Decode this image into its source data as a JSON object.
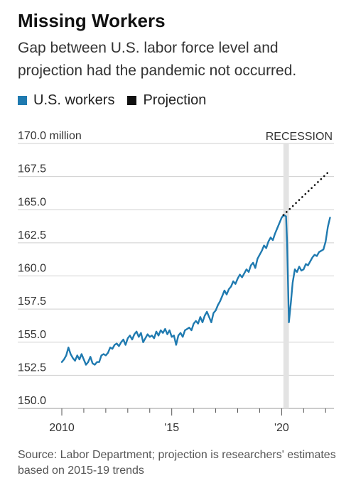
{
  "header": {
    "title": "Missing Workers",
    "subtitle": "Gap between U.S. labor force level and projection had the pandemic not occurred."
  },
  "legend": [
    {
      "label": "U.S. workers",
      "color": "#1f7ab0"
    },
    {
      "label": "Projection",
      "color": "#111111"
    }
  ],
  "recession_label": "RECESSION",
  "source": "Source: Labor Department; projection is researchers' estimates based on 2015-19 trends",
  "chart_data": {
    "type": "line",
    "title": "Missing Workers",
    "y_unit": "million",
    "ylim": [
      150.0,
      170.0
    ],
    "yticks": [
      150.0,
      152.5,
      155.0,
      157.5,
      160.0,
      162.5,
      165.0,
      167.5,
      170.0
    ],
    "ytick_labels": [
      "150.0",
      "152.5",
      "155.0",
      "157.5",
      "160.0",
      "162.5",
      "165.0",
      "167.5",
      "170.0 million"
    ],
    "xlim": [
      2010.0,
      2022.25
    ],
    "xticks": [
      2010,
      2015,
      2020
    ],
    "xtick_labels": [
      "2010",
      "'15",
      "'20"
    ],
    "grid": "horizontal",
    "recession": [
      2020.08,
      2020.33
    ],
    "series": [
      {
        "name": "U.S. workers",
        "color": "#1f7ab0",
        "style": "solid",
        "x": [
          2010.0,
          2010.1,
          2010.2,
          2010.3,
          2010.4,
          2010.5,
          2010.6,
          2010.7,
          2010.8,
          2010.9,
          2011.0,
          2011.1,
          2011.2,
          2011.3,
          2011.4,
          2011.5,
          2011.6,
          2011.7,
          2011.8,
          2011.9,
          2012.0,
          2012.1,
          2012.2,
          2012.3,
          2012.4,
          2012.5,
          2012.6,
          2012.7,
          2012.8,
          2012.9,
          2013.0,
          2013.1,
          2013.2,
          2013.3,
          2013.4,
          2013.5,
          2013.6,
          2013.7,
          2013.8,
          2013.9,
          2014.0,
          2014.1,
          2014.2,
          2014.3,
          2014.4,
          2014.5,
          2014.6,
          2014.7,
          2014.8,
          2014.9,
          2015.0,
          2015.1,
          2015.2,
          2015.3,
          2015.4,
          2015.5,
          2015.6,
          2015.7,
          2015.8,
          2015.9,
          2016.0,
          2016.1,
          2016.2,
          2016.3,
          2016.4,
          2016.5,
          2016.6,
          2016.7,
          2016.8,
          2016.9,
          2017.0,
          2017.1,
          2017.2,
          2017.3,
          2017.4,
          2017.5,
          2017.6,
          2017.7,
          2017.8,
          2017.9,
          2018.0,
          2018.1,
          2018.2,
          2018.3,
          2018.4,
          2018.5,
          2018.6,
          2018.7,
          2018.8,
          2018.9,
          2019.0,
          2019.1,
          2019.2,
          2019.3,
          2019.4,
          2019.5,
          2019.6,
          2019.7,
          2019.8,
          2019.9,
          2020.0,
          2020.1,
          2020.2,
          2020.25,
          2020.33,
          2020.42,
          2020.5,
          2020.6,
          2020.7,
          2020.8,
          2020.9,
          2021.0,
          2021.1,
          2021.2,
          2021.3,
          2021.4,
          2021.5,
          2021.6,
          2021.7,
          2021.8,
          2021.9,
          2022.0,
          2022.1,
          2022.2
        ],
        "y": [
          153.5,
          153.7,
          154.0,
          154.6,
          154.1,
          153.8,
          153.6,
          154.0,
          153.7,
          154.1,
          153.7,
          153.3,
          153.5,
          153.9,
          153.4,
          153.3,
          153.5,
          153.5,
          154.0,
          154.1,
          154.0,
          154.2,
          154.6,
          154.5,
          154.8,
          154.9,
          154.7,
          155.0,
          155.2,
          154.8,
          155.3,
          155.5,
          155.2,
          155.6,
          155.8,
          155.4,
          155.7,
          155.0,
          155.3,
          155.6,
          155.4,
          155.5,
          155.3,
          155.8,
          155.5,
          155.9,
          155.7,
          156.0,
          155.6,
          155.9,
          155.4,
          155.5,
          154.8,
          155.5,
          155.7,
          155.4,
          155.9,
          156.0,
          156.1,
          155.9,
          156.4,
          156.6,
          156.4,
          156.9,
          156.5,
          157.0,
          157.3,
          156.9,
          156.5,
          157.2,
          157.4,
          157.8,
          158.1,
          158.5,
          158.9,
          158.6,
          159.0,
          159.2,
          159.6,
          159.4,
          159.8,
          160.1,
          159.9,
          160.2,
          160.5,
          160.3,
          160.8,
          161.0,
          160.6,
          161.3,
          161.6,
          161.9,
          162.3,
          162.1,
          162.6,
          162.9,
          162.7,
          163.2,
          163.6,
          164.0,
          164.4,
          164.6,
          164.5,
          162.5,
          156.5,
          158.0,
          159.5,
          160.5,
          160.3,
          160.7,
          160.4,
          160.5,
          160.9,
          160.8,
          161.1,
          161.4,
          161.6,
          161.5,
          161.8,
          161.9,
          162.0,
          162.6,
          163.7,
          164.4
        ]
      },
      {
        "name": "Projection",
        "color": "#111111",
        "style": "dotted",
        "x": [
          2020.08,
          2022.1
        ],
        "y": [
          164.6,
          167.8
        ]
      }
    ]
  }
}
